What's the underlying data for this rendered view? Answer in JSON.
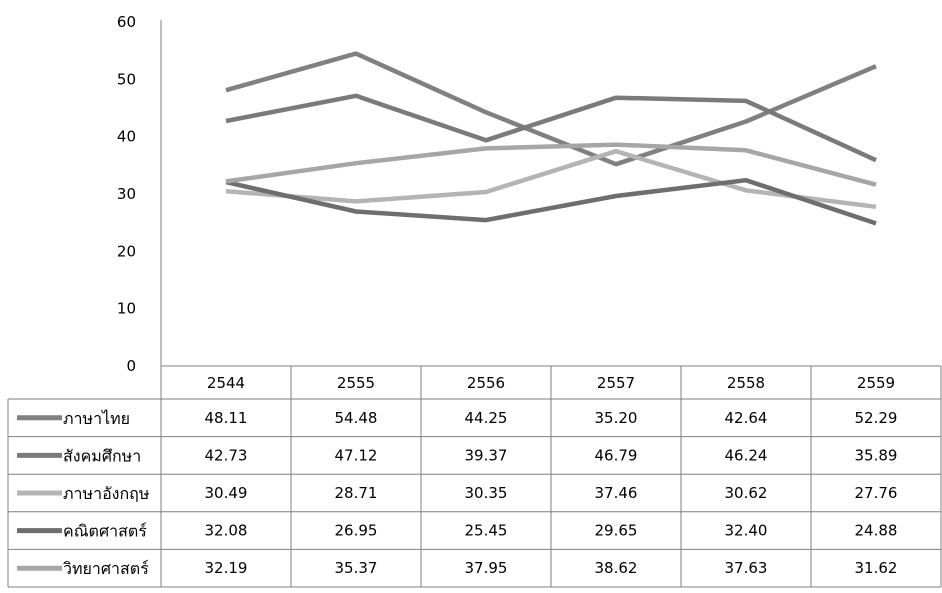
{
  "chart_data": {
    "type": "line",
    "title": "",
    "xlabel": "",
    "ylabel": "",
    "ylim": [
      0,
      60
    ],
    "yticks": [
      0,
      10,
      20,
      30,
      40,
      50,
      60
    ],
    "grid": false,
    "legend": "data-table-left",
    "categories": [
      "2544",
      "2555",
      "2556",
      "2557",
      "2558",
      "2559"
    ],
    "series": [
      {
        "name": "ภาษาไทย",
        "color": "#808080",
        "values": [
          48.11,
          54.48,
          44.25,
          35.2,
          42.64,
          52.29
        ],
        "labels": [
          "48.11",
          "54.48",
          "44.25",
          "35.20",
          "42.64",
          "52.29"
        ]
      },
      {
        "name": "สังคมศึกษา",
        "color": "#7a7a7a",
        "values": [
          42.73,
          47.12,
          39.37,
          46.79,
          46.24,
          35.89
        ],
        "labels": [
          "42.73",
          "47.12",
          "39.37",
          "46.79",
          "46.24",
          "35.89"
        ]
      },
      {
        "name": "ภาษาอังกฤษ",
        "color": "#b4b4b4",
        "values": [
          30.49,
          28.71,
          30.35,
          37.46,
          30.62,
          27.76
        ],
        "labels": [
          "30.49",
          "28.71",
          "30.35",
          "37.46",
          "30.62",
          "27.76"
        ]
      },
      {
        "name": "คณิตศาสตร์",
        "color": "#6e6e6e",
        "values": [
          32.08,
          26.95,
          25.45,
          29.65,
          32.4,
          24.88
        ],
        "labels": [
          "32.08",
          "26.95",
          "25.45",
          "29.65",
          "32.40",
          "24.88"
        ]
      },
      {
        "name": "วิทยาศาสตร์",
        "color": "#a6a6a6",
        "values": [
          32.19,
          35.37,
          37.95,
          38.62,
          37.63,
          31.62
        ],
        "labels": [
          "32.19",
          "35.37",
          "37.95",
          "38.62",
          "37.63",
          "31.62"
        ]
      }
    ]
  }
}
